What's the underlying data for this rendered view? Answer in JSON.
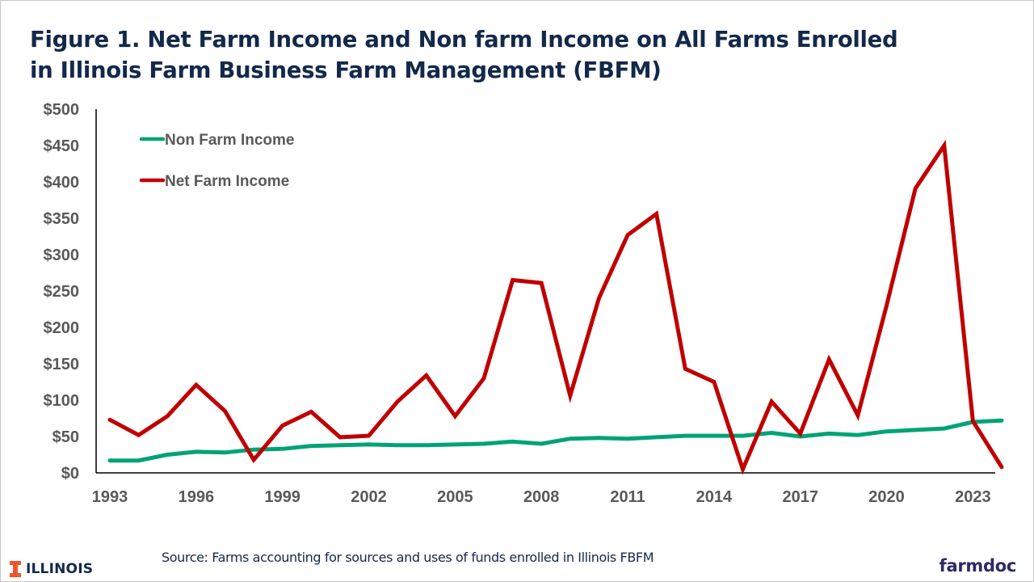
{
  "title": {
    "line1": "Figure 1. Net Farm Income and Non farm Income on All Farms Enrolled",
    "line2": "in Illinois Farm Business Farm Management (FBFM)"
  },
  "source": "Source:  Farms accounting for sources and uses of funds enrolled in Illinois FBFM",
  "logos": {
    "left": "ILLINOIS",
    "right": "farmdoc"
  },
  "colors": {
    "title": "#13294b",
    "non_farm": "#00a376",
    "net_farm": "#c00000",
    "axis_text": "#595959",
    "illinois_orange": "#e84a27"
  },
  "chart_data": {
    "type": "line",
    "title": "Figure 1. Net Farm Income and Non farm Income on All Farms Enrolled in Illinois Farm Business Farm Management (FBFM)",
    "xlabel": "",
    "ylabel": "",
    "ylim": [
      0,
      500
    ],
    "yticks": [
      0,
      50,
      100,
      150,
      200,
      250,
      300,
      350,
      400,
      450,
      500
    ],
    "ytick_labels": [
      "$0",
      "$50",
      "$100",
      "$150",
      "$200",
      "$250",
      "$300",
      "$350",
      "$400",
      "$450",
      "$500"
    ],
    "xtick_labels": [
      "1993",
      "1996",
      "1999",
      "2002",
      "2005",
      "2008",
      "2011",
      "2014",
      "2017",
      "2020",
      "2023"
    ],
    "grid": false,
    "legend_position": "upper left (inside plot)",
    "x": [
      1993,
      1994,
      1995,
      1996,
      1997,
      1998,
      1999,
      2000,
      2001,
      2002,
      2003,
      2004,
      2005,
      2006,
      2007,
      2008,
      2009,
      2010,
      2011,
      2012,
      2013,
      2014,
      2015,
      2016,
      2017,
      2018,
      2019,
      2020,
      2021,
      2022,
      2023,
      2024
    ],
    "series": [
      {
        "name": "Non Farm Income",
        "color": "#00a376",
        "values": [
          17,
          17,
          25,
          29,
          28,
          32,
          33,
          37,
          38,
          39,
          38,
          38,
          39,
          40,
          43,
          40,
          47,
          48,
          47,
          49,
          51,
          51,
          51,
          55,
          50,
          54,
          52,
          57,
          59,
          61,
          70,
          72
        ]
      },
      {
        "name": "Net Farm Income",
        "color": "#c00000",
        "values": [
          73,
          52,
          78,
          121,
          85,
          18,
          65,
          84,
          49,
          51,
          98,
          134,
          78,
          130,
          265,
          261,
          106,
          240,
          327,
          356,
          143,
          125,
          5,
          98,
          54,
          156,
          79,
          230,
          391,
          450,
          71,
          8
        ]
      }
    ]
  }
}
